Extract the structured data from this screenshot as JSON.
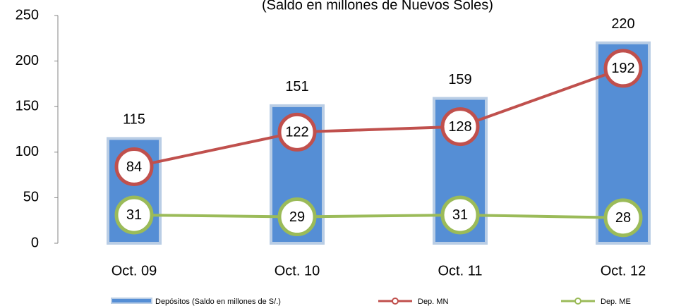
{
  "chart_data": {
    "type": "bar",
    "subtitle": "(Saldo en millones de Nuevos Soles)",
    "categories": [
      "Oct. 09",
      "Oct. 10",
      "Oct. 11",
      "Oct. 12"
    ],
    "series": [
      {
        "name": "Depósitos (Saldo en millones de S/.)",
        "type": "bar",
        "color": "#558ed5",
        "values": [
          115,
          151,
          159,
          220
        ]
      },
      {
        "name": "Dep. MN",
        "type": "line",
        "color": "#c0504d",
        "values": [
          84,
          122,
          128,
          192
        ]
      },
      {
        "name": "Dep. ME",
        "type": "line",
        "color": "#9bbb59",
        "values": [
          31,
          29,
          31,
          28
        ]
      }
    ],
    "ylim": [
      0,
      250
    ],
    "yticks": [
      0,
      50,
      100,
      150,
      200,
      250
    ],
    "legend": "bottom"
  }
}
